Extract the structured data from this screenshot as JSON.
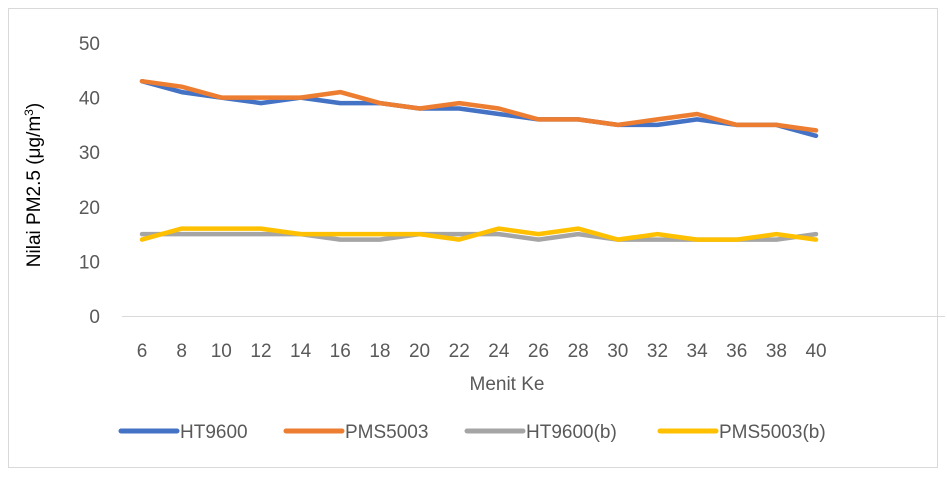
{
  "chart_data": {
    "type": "line",
    "title": "",
    "xlabel": "Menit Ke",
    "ylabel_main": "Nilai PM2.5 (μg/m",
    "ylabel_sup": "3",
    "ylabel_close": ")",
    "ylim": [
      0,
      50
    ],
    "yticks": [
      0,
      10,
      20,
      30,
      40,
      50
    ],
    "grid": false,
    "legend": "bottom",
    "categories": [
      "6",
      "8",
      "10",
      "12",
      "14",
      "16",
      "18",
      "20",
      "22",
      "24",
      "26",
      "28",
      "30",
      "32",
      "34",
      "36",
      "38",
      "40"
    ],
    "series": [
      {
        "name": "HT9600",
        "color": "#4472C4",
        "values": [
          43,
          41,
          40,
          39,
          40,
          39,
          39,
          38,
          38,
          37,
          36,
          36,
          35,
          35,
          36,
          35,
          35,
          33
        ]
      },
      {
        "name": "PMS5003",
        "color": "#ED7D31",
        "values": [
          43,
          42,
          40,
          40,
          40,
          41,
          39,
          38,
          39,
          38,
          36,
          36,
          35,
          36,
          37,
          35,
          35,
          34
        ]
      },
      {
        "name": "HT9600(b)",
        "color": "#A5A5A5",
        "values": [
          15,
          15,
          15,
          15,
          15,
          14,
          14,
          15,
          15,
          15,
          14,
          15,
          14,
          14,
          14,
          14,
          14,
          15
        ]
      },
      {
        "name": "PMS5003(b)",
        "color": "#FFC000",
        "values": [
          14,
          16,
          16,
          16,
          15,
          15,
          15,
          15,
          14,
          16,
          15,
          16,
          14,
          15,
          14,
          14,
          15,
          14
        ]
      }
    ]
  }
}
